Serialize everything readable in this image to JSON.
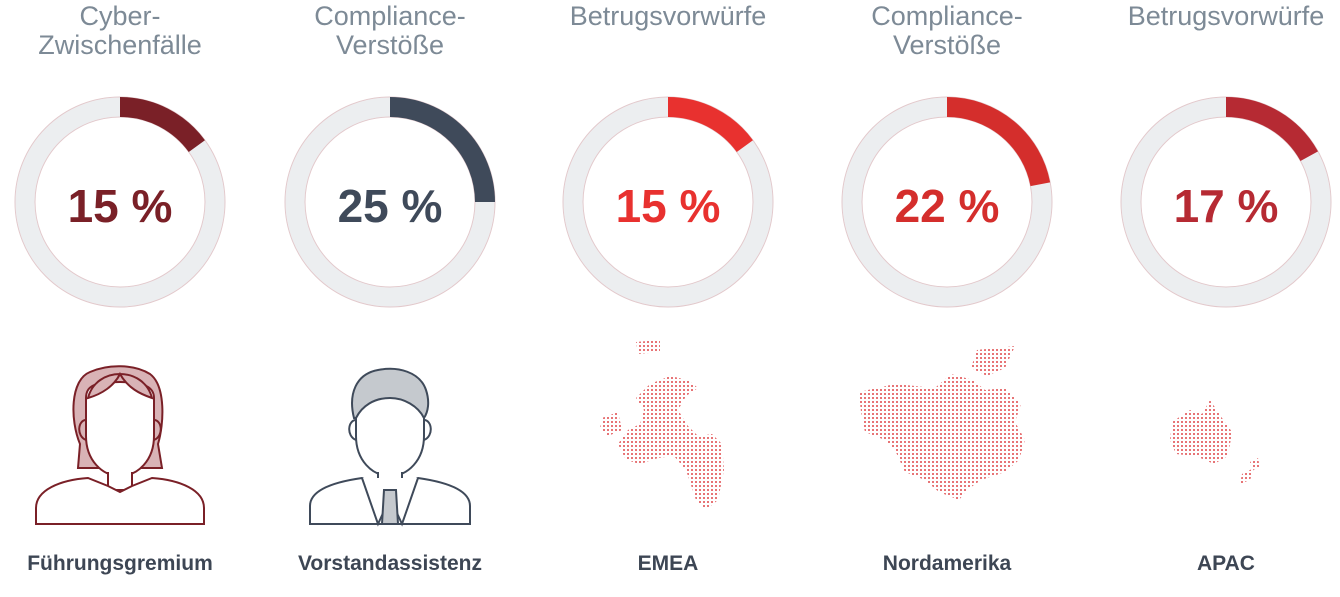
{
  "cards": [
    {
      "title": "Cyber-\nZwischenfälle",
      "percent_text": "15 %",
      "value": 0.15,
      "color": "#7a2027",
      "label": "Führungsgremium",
      "illustration": "female-executive-icon"
    },
    {
      "title": "Compliance-\nVerstöße",
      "percent_text": "25 %",
      "value": 0.25,
      "color": "#3f4a5a",
      "label": "Vorstandassistenz",
      "illustration": "male-assistant-icon"
    },
    {
      "title": "Betrugsvorwürfe",
      "percent_text": "15 %",
      "value": 0.15,
      "color": "#e8312f",
      "label": "EMEA",
      "illustration": "emea-dot-map"
    },
    {
      "title": "Compliance-\nVerstöße",
      "percent_text": "22 %",
      "value": 0.22,
      "color": "#d42e2c",
      "label": "Nordamerika",
      "illustration": "north-america-dot-map"
    },
    {
      "title": "Betrugsvorwürfe",
      "percent_text": "17 %",
      "value": 0.17,
      "color": "#b62a33",
      "label": "APAC",
      "illustration": "apac-dot-map"
    }
  ],
  "colors": {
    "ring_track": "#eceef0",
    "ring_outline": "#e2c9cc",
    "map_dots": "#e0484a"
  }
}
